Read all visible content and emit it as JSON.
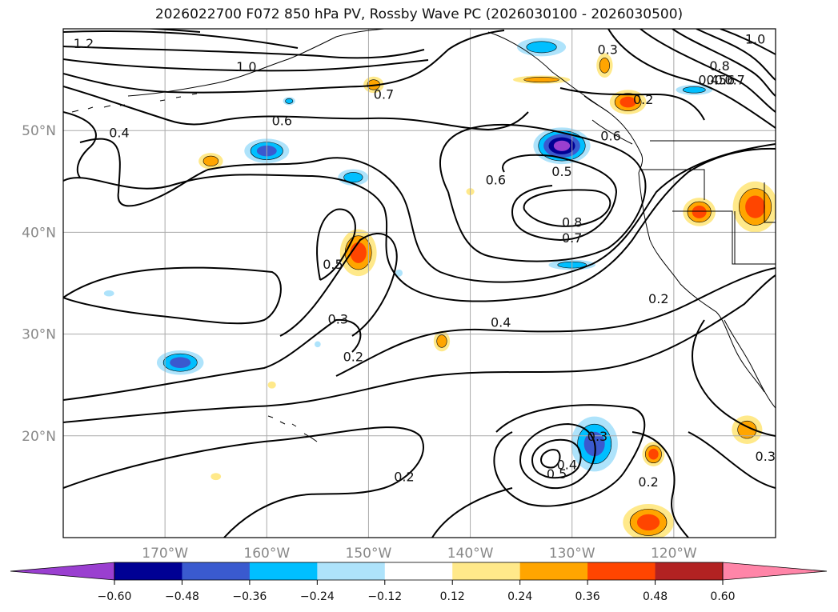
{
  "title": "2026022700 F072 850 hPa PV, Rossby Wave PC (2026030100 - 2026030500)",
  "map": {
    "lon_range": [
      -180,
      -110
    ],
    "lat_range": [
      10,
      60
    ],
    "lon_ticks": [
      {
        "value": -170,
        "label": "170°W"
      },
      {
        "value": -160,
        "label": "160°W"
      },
      {
        "value": -150,
        "label": "150°W"
      },
      {
        "value": -140,
        "label": "140°W"
      },
      {
        "value": -130,
        "label": "130°W"
      },
      {
        "value": -120,
        "label": "120°W"
      }
    ],
    "lat_ticks": [
      {
        "value": 20,
        "label": "20°N"
      },
      {
        "value": 30,
        "label": "30°N"
      },
      {
        "value": 40,
        "label": "40°N"
      },
      {
        "value": 50,
        "label": "50°N"
      }
    ],
    "grid": true,
    "colors": {
      "contour": "#000000",
      "coast": "#000000",
      "grid": "#aaaaaa",
      "ticklabel": "#888888"
    }
  },
  "contour_labels": [
    {
      "text": "1.2",
      "lon": -178,
      "lat": 58.6
    },
    {
      "text": "1.0",
      "lon": -162,
      "lat": 56.3
    },
    {
      "text": "0.7",
      "lon": -148.5,
      "lat": 53.6
    },
    {
      "text": "0.6",
      "lon": -158.5,
      "lat": 51.0
    },
    {
      "text": "0.4",
      "lon": -174.5,
      "lat": 49.8
    },
    {
      "text": "0.6",
      "lon": -137.5,
      "lat": 45.2
    },
    {
      "text": "0.5",
      "lon": -131,
      "lat": 46.0
    },
    {
      "text": "0.8",
      "lon": -130,
      "lat": 41.0
    },
    {
      "text": "0.7",
      "lon": -130,
      "lat": 39.5
    },
    {
      "text": "0.5",
      "lon": -153.5,
      "lat": 36.9
    },
    {
      "text": "0.3",
      "lon": -153,
      "lat": 31.5
    },
    {
      "text": "0.4",
      "lon": -137,
      "lat": 31.2
    },
    {
      "text": "0.2",
      "lon": -151.5,
      "lat": 27.8
    },
    {
      "text": "0.2",
      "lon": -146.5,
      "lat": 16.0
    },
    {
      "text": "0.5",
      "lon": -131.5,
      "lat": 16.3
    },
    {
      "text": "0.4",
      "lon": -130.5,
      "lat": 17.2
    },
    {
      "text": "0.3",
      "lon": -127.5,
      "lat": 20.0
    },
    {
      "text": "0.2",
      "lon": -122.5,
      "lat": 15.5
    },
    {
      "text": "0.3",
      "lon": -111,
      "lat": 18.0
    },
    {
      "text": "0.2",
      "lon": -121.5,
      "lat": 33.5
    },
    {
      "text": "0.3",
      "lon": -126.5,
      "lat": 58.0
    },
    {
      "text": "1.0",
      "lon": -112,
      "lat": 59.0
    },
    {
      "text": "0.8",
      "lon": -115.5,
      "lat": 56.4
    },
    {
      "text": "0.4",
      "lon": -116.6,
      "lat": 55.0
    },
    {
      "text": "0.5",
      "lon": -115.8,
      "lat": 55.0
    },
    {
      "text": "0.6",
      "lon": -115.0,
      "lat": 55.0
    },
    {
      "text": "0.7",
      "lon": -114.0,
      "lat": 55.0
    },
    {
      "text": "0.2",
      "lon": -123,
      "lat": 53.1
    },
    {
      "text": "0.6",
      "lon": -126.2,
      "lat": 49.5
    }
  ],
  "shading": [
    {
      "lon": -160,
      "lat": 48.0,
      "rx": 2.2,
      "ry": 1.2,
      "sign": -1,
      "levels": 3
    },
    {
      "lon": -151.5,
      "lat": 45.4,
      "rx": 1.5,
      "ry": 0.8,
      "sign": -1,
      "levels": 2
    },
    {
      "lon": -165.5,
      "lat": 47.0,
      "rx": 1.2,
      "ry": 0.8,
      "sign": 1,
      "levels": 2
    },
    {
      "lon": -151,
      "lat": 38.0,
      "rx": 1.8,
      "ry": 2.3,
      "sign": 1,
      "levels": 3
    },
    {
      "lon": -149.5,
      "lat": 54.5,
      "rx": 1.0,
      "ry": 0.8,
      "sign": 1,
      "levels": 2
    },
    {
      "lon": -131.0,
      "lat": 48.5,
      "rx": 2.8,
      "ry": 1.8,
      "sign": -1,
      "levels": 5
    },
    {
      "lon": -133.0,
      "lat": 55.0,
      "rx": 2.8,
      "ry": 0.4,
      "sign": 1,
      "levels": 2
    },
    {
      "lon": -133.0,
      "lat": 58.2,
      "rx": 2.4,
      "ry": 0.9,
      "sign": -1,
      "levels": 2
    },
    {
      "lon": -126.8,
      "lat": 56.4,
      "rx": 0.8,
      "ry": 1.2,
      "sign": 1,
      "levels": 2
    },
    {
      "lon": -124.5,
      "lat": 52.8,
      "rx": 1.8,
      "ry": 1.2,
      "sign": 1,
      "levels": 3
    },
    {
      "lon": -118.0,
      "lat": 54.0,
      "rx": 1.8,
      "ry": 0.5,
      "sign": -1,
      "levels": 2
    },
    {
      "lon": -117.5,
      "lat": 42.0,
      "rx": 1.6,
      "ry": 1.4,
      "sign": 1,
      "levels": 3
    },
    {
      "lon": -112.0,
      "lat": 42.5,
      "rx": 2.2,
      "ry": 2.5,
      "sign": 1,
      "levels": 3
    },
    {
      "lon": -130.0,
      "lat": 36.8,
      "rx": 2.3,
      "ry": 0.5,
      "sign": -1,
      "levels": 2
    },
    {
      "lon": -168.5,
      "lat": 27.2,
      "rx": 2.3,
      "ry": 1.2,
      "sign": -1,
      "levels": 3
    },
    {
      "lon": -142.8,
      "lat": 29.3,
      "rx": 0.8,
      "ry": 1.0,
      "sign": 1,
      "levels": 2
    },
    {
      "lon": -127.8,
      "lat": 19.2,
      "rx": 2.3,
      "ry": 2.7,
      "sign": -1,
      "levels": 3
    },
    {
      "lon": -122.0,
      "lat": 18.2,
      "rx": 1.1,
      "ry": 1.2,
      "sign": 1,
      "levels": 3
    },
    {
      "lon": -122.5,
      "lat": 11.5,
      "rx": 2.5,
      "ry": 1.8,
      "sign": 1,
      "levels": 3
    },
    {
      "lon": -112.8,
      "lat": 20.6,
      "rx": 1.5,
      "ry": 1.4,
      "sign": 1,
      "levels": 2
    },
    {
      "lon": -157.8,
      "lat": 52.9,
      "rx": 0.6,
      "ry": 0.4,
      "sign": -1,
      "levels": 2
    },
    {
      "lon": -140.0,
      "lat": 44.0,
      "rx": 0.4,
      "ry": 0.35,
      "sign": 1,
      "levels": 1
    },
    {
      "lon": -159.5,
      "lat": 25.0,
      "rx": 0.4,
      "ry": 0.35,
      "sign": 1,
      "levels": 1
    },
    {
      "lon": -165.0,
      "lat": 16.0,
      "rx": 0.5,
      "ry": 0.35,
      "sign": 1,
      "levels": 1
    },
    {
      "lon": -147.0,
      "lat": 36.0,
      "rx": 0.35,
      "ry": 0.35,
      "sign": -1,
      "levels": 1
    },
    {
      "lon": -155.0,
      "lat": 29.0,
      "rx": 0.3,
      "ry": 0.3,
      "sign": -1,
      "levels": 1
    },
    {
      "lon": -175.5,
      "lat": 34.0,
      "rx": 0.5,
      "ry": 0.3,
      "sign": -1,
      "levels": 1
    }
  ],
  "colorbar": {
    "colors": [
      "#9a3fd0",
      "#000094",
      "#3a5acf",
      "#00bfff",
      "#aee3fb",
      "#ffffff",
      "#ffe98a",
      "#ffa500",
      "#ff4500",
      "#b22222",
      "#ff85a8"
    ],
    "ticks": [
      "−0.60",
      "−0.48",
      "−0.36",
      "−0.24",
      "−0.12",
      "0.12",
      "0.24",
      "0.36",
      "0.48",
      "0.60"
    ]
  }
}
